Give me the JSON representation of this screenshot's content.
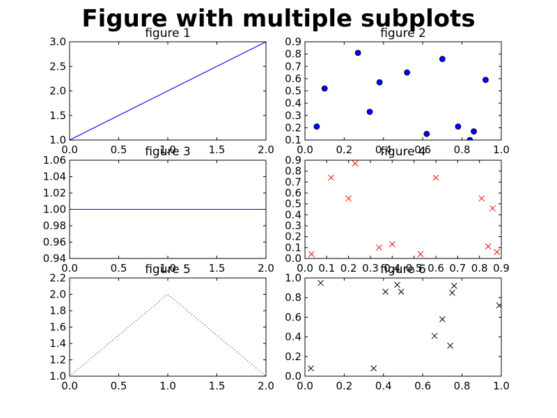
{
  "figure": {
    "title": "Figure with multiple subplots"
  },
  "chart_data": [
    {
      "type": "line",
      "title": "figure 1",
      "series": [
        {
          "x": [
            0,
            2
          ],
          "y": [
            1,
            3
          ],
          "color": "#0000ff",
          "linestyle": "solid"
        }
      ],
      "xlim": [
        0,
        2
      ],
      "ylim": [
        1,
        3
      ],
      "xticks": [
        0,
        0.5,
        1,
        1.5,
        2
      ],
      "xtick_labels": [
        "0.0",
        "0.5",
        "1.0",
        "1.5",
        "2.0"
      ],
      "yticks": [
        1,
        1.5,
        2,
        2.5,
        3
      ],
      "ytick_labels": [
        "1.0",
        "1.5",
        "2.0",
        "2.5",
        "3.0"
      ]
    },
    {
      "type": "scatter",
      "title": "figure 2",
      "series": [
        {
          "x": [
            0.06,
            0.1,
            0.27,
            0.33,
            0.38,
            0.52,
            0.62,
            0.7,
            0.78,
            0.84,
            0.86,
            0.92
          ],
          "y": [
            0.21,
            0.52,
            0.81,
            0.33,
            0.57,
            0.65,
            0.15,
            0.76,
            0.21,
            0.1,
            0.17,
            0.59
          ],
          "color": "#0000ff",
          "marker": "o"
        }
      ],
      "xlim": [
        0,
        1
      ],
      "ylim": [
        0.1,
        0.9
      ],
      "xticks": [
        0,
        0.2,
        0.4,
        0.6,
        0.8,
        1.0
      ],
      "xtick_labels": [
        "0.0",
        "0.2",
        "0.4",
        "0.6",
        "0.8",
        "1.0"
      ],
      "yticks": [
        0.1,
        0.2,
        0.3,
        0.4,
        0.5,
        0.6,
        0.7,
        0.8,
        0.9
      ],
      "ytick_labels": [
        "0.1",
        "0.2",
        "0.3",
        "0.4",
        "0.5",
        "0.6",
        "0.7",
        "0.8",
        "0.9"
      ]
    },
    {
      "type": "line",
      "title": "figure 3",
      "series": [
        {
          "x": [
            0,
            2
          ],
          "y": [
            1,
            1
          ],
          "color": "#0000ff",
          "linestyle": "solid"
        }
      ],
      "xlim": [
        0,
        2
      ],
      "ylim": [
        0.94,
        1.06
      ],
      "xticks": [
        0,
        0.5,
        1,
        1.5,
        2
      ],
      "xtick_labels": [
        "0.0",
        "0.5",
        "1.0",
        "1.5",
        "2.0"
      ],
      "yticks": [
        0.94,
        0.96,
        0.98,
        1.0,
        1.02,
        1.04,
        1.06
      ],
      "ytick_labels": [
        "0.94",
        "0.96",
        "0.98",
        "1.00",
        "1.02",
        "1.04",
        "1.06"
      ]
    },
    {
      "type": "scatter",
      "title": "figure 4",
      "series": [
        {
          "x": [
            0.03,
            0.12,
            0.2,
            0.23,
            0.34,
            0.4,
            0.53,
            0.6,
            0.81,
            0.84,
            0.86,
            0.88
          ],
          "y": [
            0.04,
            0.74,
            0.55,
            0.87,
            0.1,
            0.13,
            0.04,
            0.74,
            0.55,
            0.11,
            0.46,
            0.06
          ],
          "color": "#ff0000",
          "marker": "x"
        }
      ],
      "xlim": [
        0,
        0.9
      ],
      "ylim": [
        0,
        0.9
      ],
      "xticks": [
        0,
        0.1,
        0.2,
        0.3,
        0.4,
        0.5,
        0.6,
        0.7,
        0.8,
        0.9
      ],
      "xtick_labels": [
        "0.0",
        "0.1",
        "0.2",
        "0.3",
        "0.4",
        "0.5",
        "0.6",
        "0.7",
        "0.8",
        "0.9"
      ],
      "yticks": [
        0,
        0.1,
        0.2,
        0.3,
        0.4,
        0.5,
        0.6,
        0.7,
        0.8,
        0.9
      ],
      "ytick_labels": [
        "0.0",
        "0.1",
        "0.2",
        "0.3",
        "0.4",
        "0.5",
        "0.6",
        "0.7",
        "0.8",
        "0.9"
      ]
    },
    {
      "type": "line",
      "title": "figure 5",
      "series": [
        {
          "x": [
            0,
            1,
            2
          ],
          "y": [
            1,
            2,
            1
          ],
          "color": "#0000ff",
          "linestyle": "dotted"
        }
      ],
      "xlim": [
        0,
        2
      ],
      "ylim": [
        1,
        2.2
      ],
      "xticks": [
        0,
        0.5,
        1,
        1.5,
        2
      ],
      "xtick_labels": [
        "0.0",
        "0.5",
        "1.0",
        "1.5",
        "2.0"
      ],
      "yticks": [
        1.0,
        1.2,
        1.4,
        1.6,
        1.8,
        2.0,
        2.2
      ],
      "ytick_labels": [
        "1.0",
        "1.2",
        "1.4",
        "1.6",
        "1.8",
        "2.0",
        "2.2"
      ]
    },
    {
      "type": "scatter",
      "title": "figure 6",
      "series": [
        {
          "x": [
            0.03,
            0.08,
            0.35,
            0.41,
            0.47,
            0.49,
            0.66,
            0.7,
            0.74,
            0.75,
            0.76,
            0.99
          ],
          "y": [
            0.08,
            0.95,
            0.08,
            0.86,
            0.93,
            0.86,
            0.41,
            0.58,
            0.31,
            0.85,
            0.92,
            0.72
          ],
          "color": "#000000",
          "marker": "x"
        }
      ],
      "xlim": [
        0,
        1
      ],
      "ylim": [
        0,
        1
      ],
      "xticks": [
        0,
        0.2,
        0.4,
        0.6,
        0.8,
        1.0
      ],
      "xtick_labels": [
        "0.0",
        "0.2",
        "0.4",
        "0.6",
        "0.8",
        "1.0"
      ],
      "yticks": [
        0,
        0.2,
        0.4,
        0.6,
        0.8,
        1.0
      ],
      "ytick_labels": [
        "0.0",
        "0.2",
        "0.4",
        "0.6",
        "0.8",
        "1.0"
      ]
    }
  ]
}
